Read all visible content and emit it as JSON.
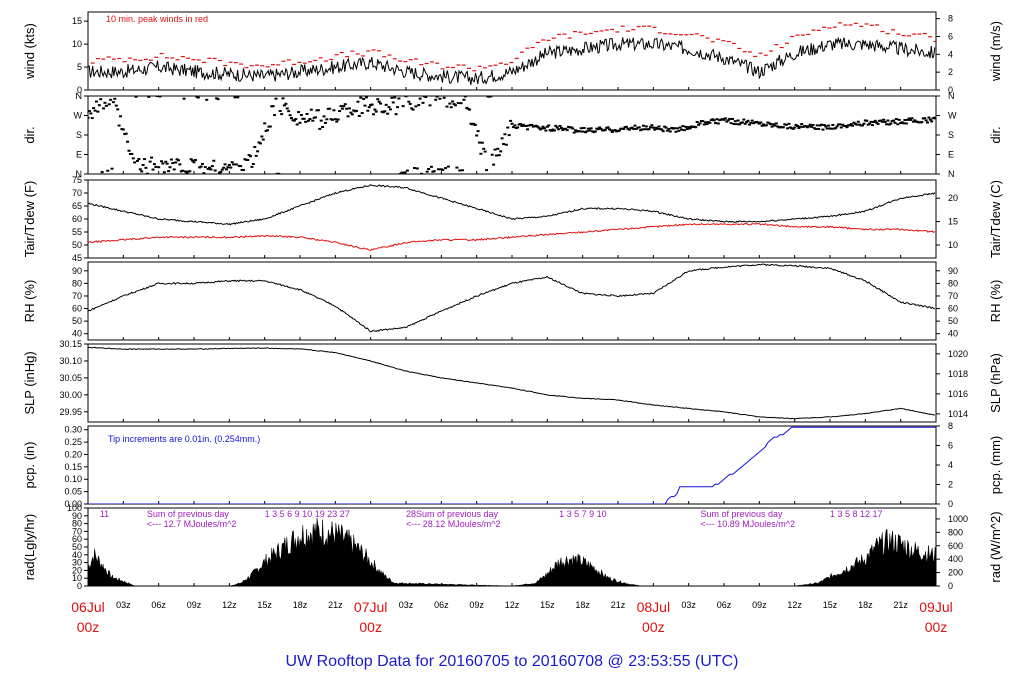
{
  "title": "UW Rooftop Data for 20160705  to  20160708 @ 23:53:55  (UTC)",
  "colors": {
    "black": "#000000",
    "red": "#e01010",
    "blue": "#1010e0",
    "title": "#1a1ad0",
    "purple": "#a020c0",
    "axis": "#000000"
  },
  "xaxis": {
    "hour_ticks": [
      {
        "h": 0,
        "label": "06Jul"
      },
      {
        "h": 3,
        "label": "03z"
      },
      {
        "h": 6,
        "label": "06z"
      },
      {
        "h": 9,
        "label": "09z"
      },
      {
        "h": 12,
        "label": "12z"
      },
      {
        "h": 15,
        "label": "15z"
      },
      {
        "h": 18,
        "label": "18z"
      },
      {
        "h": 21,
        "label": "21z"
      },
      {
        "h": 24,
        "label": "07Jul"
      },
      {
        "h": 27,
        "label": "03z"
      },
      {
        "h": 30,
        "label": "06z"
      },
      {
        "h": 33,
        "label": "09z"
      },
      {
        "h": 36,
        "label": "12z"
      },
      {
        "h": 39,
        "label": "15z"
      },
      {
        "h": 42,
        "label": "18z"
      },
      {
        "h": 45,
        "label": "21z"
      },
      {
        "h": 48,
        "label": "08Jul"
      },
      {
        "h": 51,
        "label": "03z"
      },
      {
        "h": 54,
        "label": "06z"
      },
      {
        "h": 57,
        "label": "09z"
      },
      {
        "h": 60,
        "label": "12z"
      },
      {
        "h": 63,
        "label": "15z"
      },
      {
        "h": 66,
        "label": "18z"
      },
      {
        "h": 69,
        "label": "21z"
      },
      {
        "h": 72,
        "label": "09Jul"
      }
    ],
    "day_marks": [
      {
        "h": 0,
        "label": "00z"
      },
      {
        "h": 24,
        "label": "00z"
      },
      {
        "h": 48,
        "label": "00z"
      },
      {
        "h": 72,
        "label": "00z"
      }
    ]
  },
  "chart_data": [
    {
      "type": "line",
      "name": "wind",
      "left_label": "wind (kts)",
      "right_label": "wind (m/s)",
      "ylim": [
        0,
        17
      ],
      "left_ticks": [
        "0",
        "5",
        "10",
        "15"
      ],
      "left_values": [
        0,
        5,
        10,
        15
      ],
      "right_ticks": [
        "0",
        "2",
        "4",
        "6",
        "8"
      ],
      "right_values": [
        0,
        3.89,
        7.78,
        11.66,
        15.55
      ],
      "annotation": "10 min. peak winds in red",
      "series": [
        {
          "name": "wind speed",
          "x": [
            0,
            3,
            6,
            9,
            12,
            15,
            18,
            21,
            24,
            27,
            30,
            33,
            36,
            39,
            42,
            45,
            48,
            51,
            54,
            57,
            60,
            63,
            66,
            69,
            72
          ],
          "values": [
            4,
            4,
            5,
            4,
            3.5,
            3,
            4,
            5,
            6,
            4,
            3,
            2.5,
            4,
            8,
            9,
            10,
            10,
            9,
            7,
            4,
            8,
            10,
            10,
            9,
            8
          ]
        },
        {
          "name": "peak",
          "x": [
            0,
            3,
            6,
            9,
            12,
            15,
            18,
            21,
            24,
            27,
            30,
            33,
            36,
            39,
            42,
            45,
            48,
            51,
            54,
            57,
            60,
            63,
            66,
            69,
            72
          ],
          "values": [
            6,
            6.5,
            7,
            6.5,
            5.5,
            5,
            6,
            7,
            8,
            6,
            5,
            4.5,
            6,
            11,
            12,
            13,
            13,
            12,
            10,
            7,
            11,
            14,
            14,
            12,
            11
          ]
        }
      ]
    },
    {
      "type": "scatter",
      "name": "direction",
      "left_label": "dir.",
      "right_label": "dir.",
      "ylim": [
        0,
        360
      ],
      "left_ticks": [
        "N",
        "E",
        "S",
        "W",
        "N"
      ],
      "left_values": [
        0,
        90,
        180,
        270,
        360
      ],
      "right_ticks": [
        "N",
        "E",
        "S",
        "W",
        "N"
      ],
      "right_values": [
        0,
        90,
        180,
        270,
        360
      ],
      "series": [
        {
          "name": "wind direction",
          "x": [
            0,
            2,
            4,
            6,
            8,
            10,
            12,
            14,
            16,
            18,
            20,
            22,
            24,
            26,
            28,
            30,
            32,
            34,
            36,
            38,
            40,
            42,
            44,
            46,
            48,
            50,
            52,
            54,
            56,
            58,
            60,
            62,
            64,
            66,
            68,
            70,
            72
          ],
          "values": [
            290,
            350,
            30,
            40,
            30,
            20,
            25,
            60,
            330,
            260,
            250,
            300,
            320,
            310,
            350,
            355,
            340,
            20,
            220,
            215,
            210,
            200,
            205,
            210,
            215,
            200,
            235,
            245,
            240,
            230,
            220,
            215,
            225,
            235,
            240,
            245,
            250
          ]
        }
      ]
    },
    {
      "type": "line",
      "name": "temperature",
      "left_label": "Tair/Tdew (F)",
      "right_label": "Tair/Tdew (C)",
      "ylim": [
        45,
        75
      ],
      "left_ticks": [
        "45",
        "50",
        "55",
        "60",
        "65",
        "70",
        "75"
      ],
      "left_values": [
        45,
        50,
        55,
        60,
        65,
        70,
        75
      ],
      "right_ticks": [
        "10",
        "15",
        "20"
      ],
      "right_values": [
        50,
        59,
        68
      ],
      "series": [
        {
          "name": "Tair",
          "x": [
            0,
            3,
            6,
            9,
            12,
            15,
            18,
            21,
            24,
            27,
            30,
            33,
            36,
            39,
            42,
            45,
            48,
            51,
            54,
            57,
            60,
            63,
            66,
            69,
            72
          ],
          "values": [
            66,
            63,
            60,
            59,
            58,
            60,
            65,
            70,
            73,
            72,
            68,
            64,
            60,
            61,
            64,
            64,
            63,
            60,
            59,
            59,
            60,
            61,
            63,
            68,
            70
          ]
        },
        {
          "name": "Tdew",
          "x": [
            0,
            3,
            6,
            9,
            12,
            15,
            18,
            21,
            24,
            27,
            30,
            33,
            36,
            39,
            42,
            45,
            48,
            51,
            54,
            57,
            60,
            63,
            66,
            69,
            72
          ],
          "values": [
            51,
            52,
            53,
            53,
            53,
            53.5,
            53,
            51,
            48,
            51,
            52,
            52,
            53,
            54,
            55,
            56,
            57,
            58,
            58,
            58,
            57,
            57,
            56,
            56,
            55
          ]
        }
      ]
    },
    {
      "type": "line",
      "name": "rh",
      "left_label": "RH (%)",
      "right_label": "RH (%)",
      "ylim": [
        35,
        97
      ],
      "left_ticks": [
        "40",
        "50",
        "60",
        "70",
        "80",
        "90"
      ],
      "left_values": [
        40,
        50,
        60,
        70,
        80,
        90
      ],
      "right_ticks": [
        "40",
        "50",
        "60",
        "70",
        "80",
        "90"
      ],
      "right_values": [
        40,
        50,
        60,
        70,
        80,
        90
      ],
      "series": [
        {
          "name": "RH",
          "x": [
            0,
            3,
            6,
            9,
            12,
            15,
            18,
            21,
            24,
            27,
            30,
            33,
            36,
            39,
            42,
            45,
            48,
            51,
            54,
            57,
            60,
            63,
            66,
            69,
            72
          ],
          "values": [
            58,
            70,
            80,
            80,
            82,
            82,
            75,
            62,
            42,
            45,
            58,
            70,
            80,
            85,
            72,
            70,
            72,
            90,
            93,
            95,
            94,
            92,
            82,
            65,
            60
          ]
        }
      ]
    },
    {
      "type": "line",
      "name": "pressure",
      "left_label": "SLP (inHg)",
      "right_label": "SLP (hPa)",
      "ylim": [
        29.92,
        30.15
      ],
      "left_ticks": [
        "29.95",
        "30.00",
        "30.05",
        "30.10",
        "30.15"
      ],
      "left_values": [
        29.95,
        30.0,
        30.05,
        30.1,
        30.15
      ],
      "right_ticks": [
        "1014",
        "1016",
        "1018",
        "1020"
      ],
      "right_values": [
        29.944,
        30.003,
        30.062,
        30.121
      ],
      "series": [
        {
          "name": "SLP",
          "x": [
            0,
            3,
            6,
            9,
            12,
            15,
            18,
            21,
            24,
            27,
            30,
            33,
            36,
            39,
            42,
            45,
            48,
            51,
            54,
            57,
            60,
            63,
            66,
            69,
            72
          ],
          "values": [
            30.14,
            30.135,
            30.135,
            30.135,
            30.137,
            30.138,
            30.135,
            30.125,
            30.1,
            30.07,
            30.05,
            30.035,
            30.02,
            30.0,
            29.99,
            29.985,
            29.97,
            29.96,
            29.95,
            29.935,
            29.93,
            29.935,
            29.945,
            29.96,
            29.94
          ]
        }
      ]
    },
    {
      "type": "line",
      "name": "precipitation",
      "left_label": "pcp. (in)",
      "right_label": "pcp. (mm)",
      "ylim": [
        0,
        0.315
      ],
      "left_ticks": [
        "0.00",
        "0.05",
        "0.10",
        "0.15",
        "0.20",
        "0.25",
        "0.30"
      ],
      "left_values": [
        0,
        0.05,
        0.1,
        0.15,
        0.2,
        0.25,
        0.3
      ],
      "right_ticks": [
        "0",
        "2",
        "4",
        "6",
        "8"
      ],
      "right_values": [
        0,
        0.0787,
        0.1575,
        0.2362,
        0.315
      ],
      "annotation": "Tip increments are 0.01in. (0.254mm.)",
      "series": [
        {
          "name": "accumulated",
          "x": [
            0,
            49,
            49.2,
            50,
            50.2,
            53,
            53.5,
            54,
            55,
            56,
            56.5,
            57,
            57.5,
            58,
            59,
            59.5,
            60,
            61,
            72
          ],
          "values": [
            0,
            0,
            0.02,
            0.04,
            0.07,
            0.07,
            0.08,
            0.1,
            0.13,
            0.17,
            0.19,
            0.21,
            0.23,
            0.26,
            0.28,
            0.3,
            0.31,
            0.31,
            0.31
          ]
        }
      ]
    },
    {
      "type": "area",
      "name": "radiation",
      "left_label": "rad(Lgly/hr)",
      "right_label": "rad (W/m^2)",
      "ylim": [
        0,
        100
      ],
      "left_ticks": [
        "0",
        "10",
        "20",
        "30",
        "40",
        "50",
        "60",
        "70",
        "80",
        "90",
        "100"
      ],
      "left_values": [
        0,
        10,
        20,
        30,
        40,
        50,
        60,
        70,
        80,
        90,
        100
      ],
      "right_ticks": [
        "0",
        "200",
        "400",
        "600",
        "800",
        "1000"
      ],
      "right_values": [
        0,
        17.2,
        34.4,
        51.6,
        68.8,
        86.0
      ],
      "annotations": [
        {
          "h": 1,
          "text": "11"
        },
        {
          "h": 5,
          "text": "Sum of previous day"
        },
        {
          "h": 5,
          "text": "<--- 12.7 MJoules/m^2"
        },
        {
          "h": 15,
          "text": "1   3   5   6   9  10  19   23   27"
        },
        {
          "h": 27,
          "text": "28Sum of previous day"
        },
        {
          "h": 27,
          "text": "<--- 28.12 MJoules/m^2"
        },
        {
          "h": 40,
          "text": "1   3   5   7   9  10"
        },
        {
          "h": 52,
          "text": "Sum of previous day"
        },
        {
          "h": 52,
          "text": "<--- 10.89 MJoules/m^2"
        },
        {
          "h": 63,
          "text": "1    3   5   8  12  17"
        }
      ],
      "series": [
        {
          "name": "radiation",
          "x": [
            0,
            0.5,
            1,
            2,
            3,
            4,
            12,
            13,
            14,
            15,
            16,
            17,
            18,
            19,
            20,
            21,
            22,
            23,
            24,
            25,
            26,
            36,
            38,
            39,
            40,
            41,
            42,
            43,
            44,
            45,
            46,
            47,
            48,
            60,
            62,
            63,
            64,
            65,
            66,
            67,
            68,
            69,
            70,
            71,
            72
          ],
          "values": [
            30,
            52,
            40,
            15,
            8,
            0,
            0,
            5,
            20,
            40,
            55,
            70,
            85,
            90,
            90,
            85,
            75,
            60,
            40,
            20,
            5,
            0,
            5,
            20,
            40,
            45,
            40,
            30,
            15,
            8,
            3,
            0,
            0,
            0,
            5,
            15,
            25,
            35,
            45,
            65,
            75,
            70,
            60,
            55,
            50
          ]
        }
      ]
    }
  ]
}
